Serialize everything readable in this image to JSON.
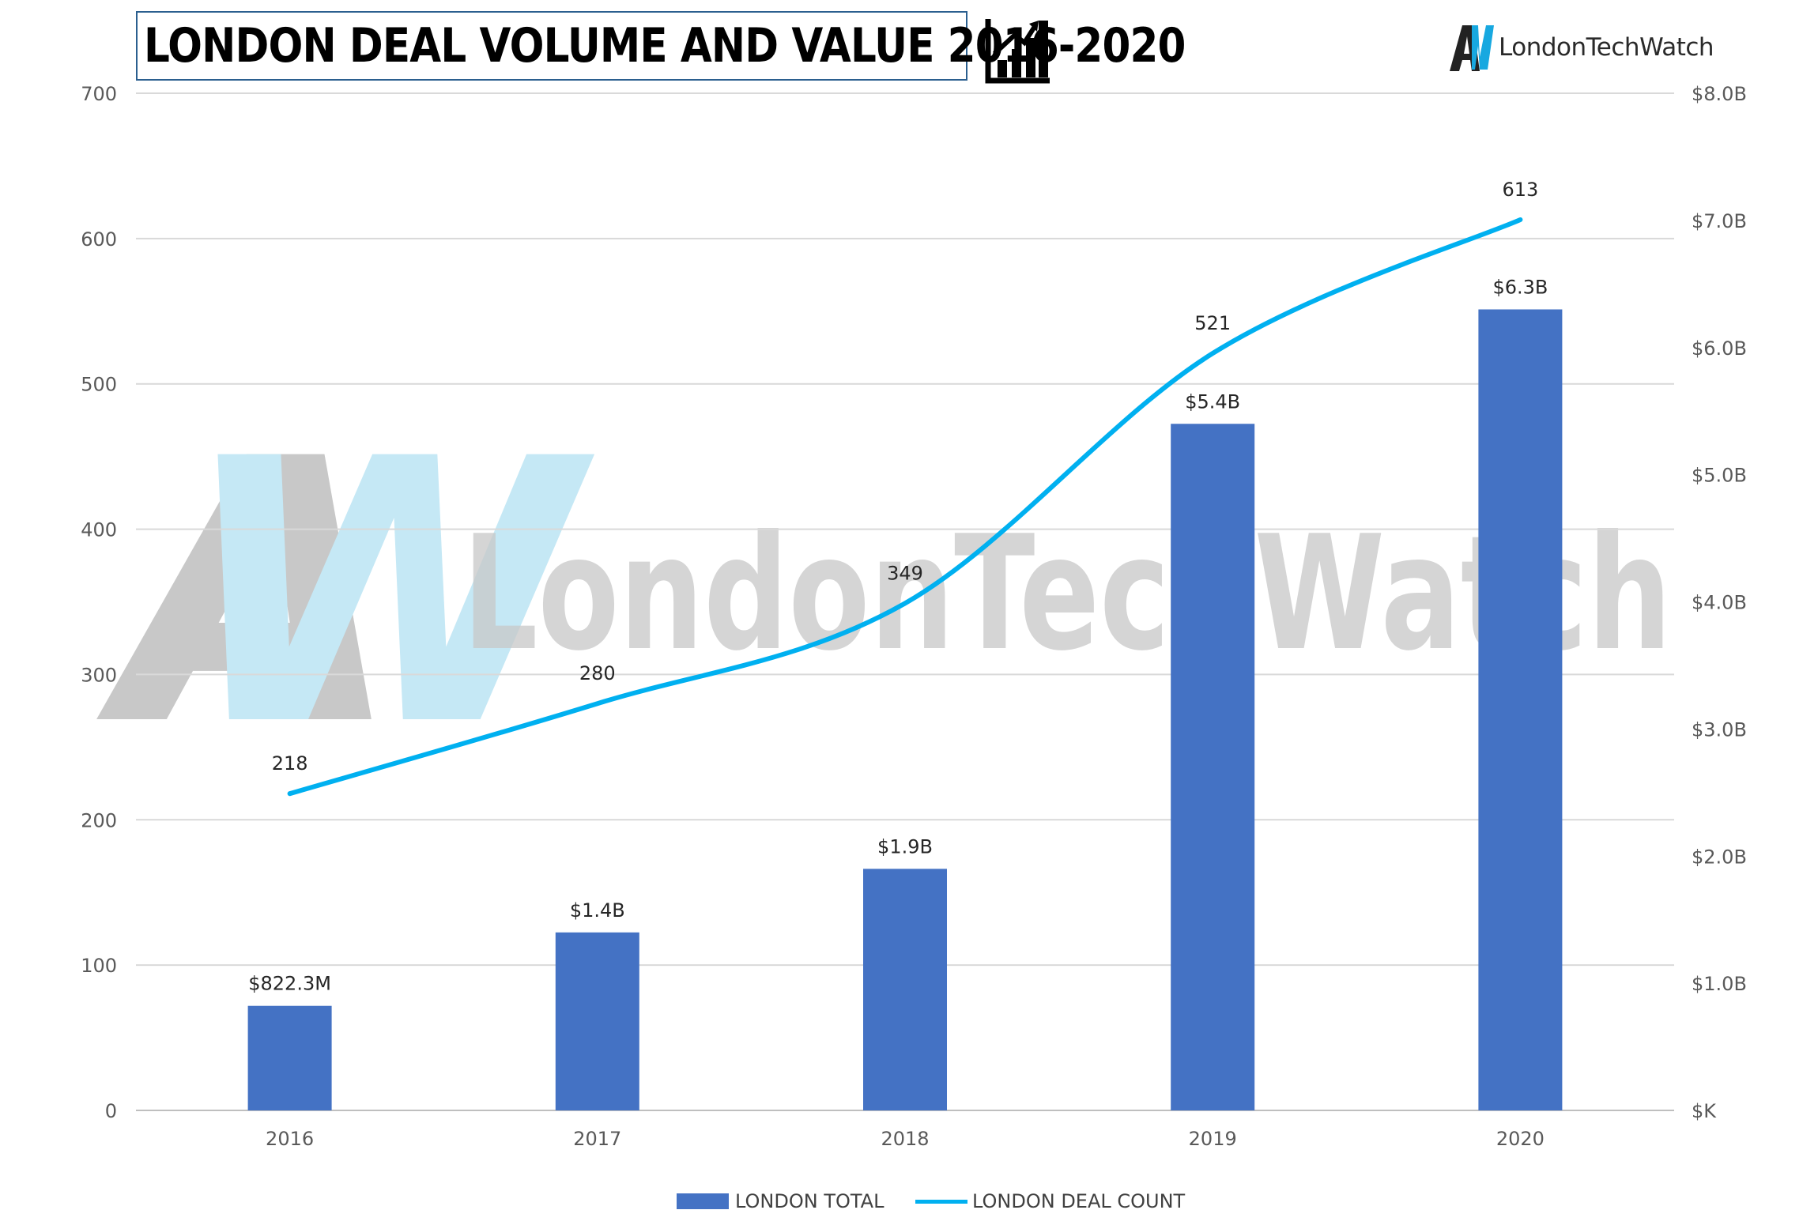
{
  "header": {
    "title": "LONDON DEAL VOLUME AND VALUE 2016-2020",
    "title_icon": "bar-chart-growth-icon",
    "logo_text": "LondonTechWatch",
    "logo_icon": "aw-logo-icon"
  },
  "watermark": {
    "text": "LondonTechWatch",
    "mark": "AW"
  },
  "colors": {
    "bar": "#4472c4",
    "line": "#00b0f0",
    "grid": "#d9d9d9",
    "axis_text": "#595959",
    "label_text": "#262626",
    "watermark_gray": "#c8c8c8",
    "watermark_blue": "#c5e8f5"
  },
  "legend": {
    "bar_label": "LONDON TOTAL",
    "line_label": "LONDON DEAL COUNT"
  },
  "chart_data": {
    "type": "bar",
    "categories": [
      "2016",
      "2017",
      "2018",
      "2019",
      "2020"
    ],
    "series": [
      {
        "name": "LONDON TOTAL",
        "type": "bar",
        "axis": "right",
        "values": [
          822.3,
          1400,
          1900,
          5400,
          6300
        ],
        "unit": "$M",
        "labels": [
          "$822.3M",
          "$1.4B",
          "$1.9B",
          "$5.4B",
          "$6.3B"
        ]
      },
      {
        "name": "LONDON DEAL COUNT",
        "type": "line",
        "axis": "left",
        "smooth": true,
        "values": [
          218,
          280,
          349,
          521,
          613
        ],
        "labels": [
          "218",
          "280",
          "349",
          "521",
          "613"
        ]
      }
    ],
    "left_axis": {
      "ylim": [
        0,
        700
      ],
      "ticks": [
        "0",
        "100",
        "200",
        "300",
        "400",
        "500",
        "600",
        "700"
      ]
    },
    "right_axis": {
      "ylim": [
        0,
        8000
      ],
      "ticks": [
        "$K",
        "$1.0B",
        "$2.0B",
        "$3.0B",
        "$4.0B",
        "$5.0B",
        "$6.0B",
        "$7.0B",
        "$8.0B"
      ]
    },
    "grid": true,
    "legend_position": "bottom"
  }
}
